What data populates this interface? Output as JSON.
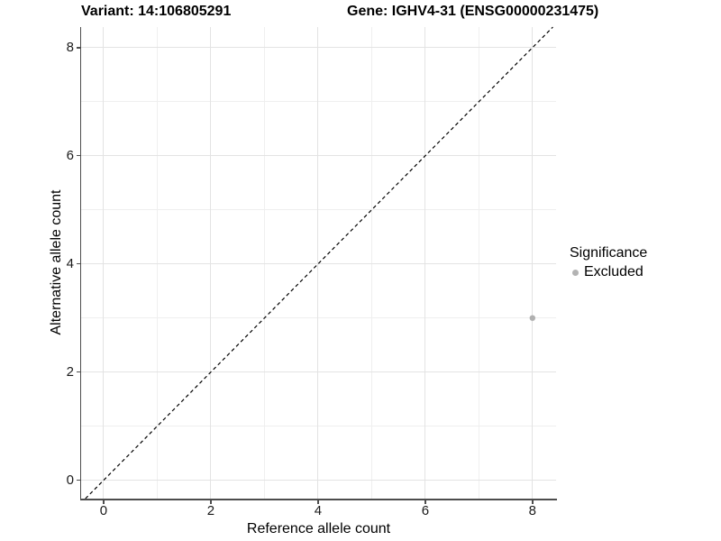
{
  "chart_data": {
    "type": "scatter",
    "titles": {
      "variant": "Variant: 14:106805291",
      "gene": "Gene: IGHV4-31 (ENSG00000231475)"
    },
    "xlabel": "Reference allele count",
    "ylabel": "Alternative allele count",
    "xlim": [
      -0.42,
      8.44
    ],
    "ylim": [
      -0.34,
      8.38
    ],
    "x_ticks": [
      0,
      2,
      4,
      6,
      8
    ],
    "y_ticks": [
      0,
      2,
      4,
      6,
      8
    ],
    "x_minor_ticks": [
      1,
      3,
      5,
      7
    ],
    "y_minor_ticks": [
      1,
      3,
      5,
      7
    ],
    "grid": true,
    "reference_line": {
      "kind": "identity y=x",
      "style": "dashed",
      "color": "#000000"
    },
    "series": [
      {
        "name": "Excluded",
        "color": "#b0b0b0",
        "points": [
          {
            "x": 8,
            "y": 3
          }
        ]
      }
    ],
    "legend": {
      "position": "right",
      "title": "Significance",
      "entries": [
        {
          "label": "Excluded",
          "color": "#b3b3b3"
        }
      ]
    },
    "colors": {
      "background": "#ffffff",
      "grid_major": "#e3e3e3",
      "grid_minor": "#efefef",
      "axis_line": "#4d4d4d",
      "text": "#000000"
    }
  }
}
